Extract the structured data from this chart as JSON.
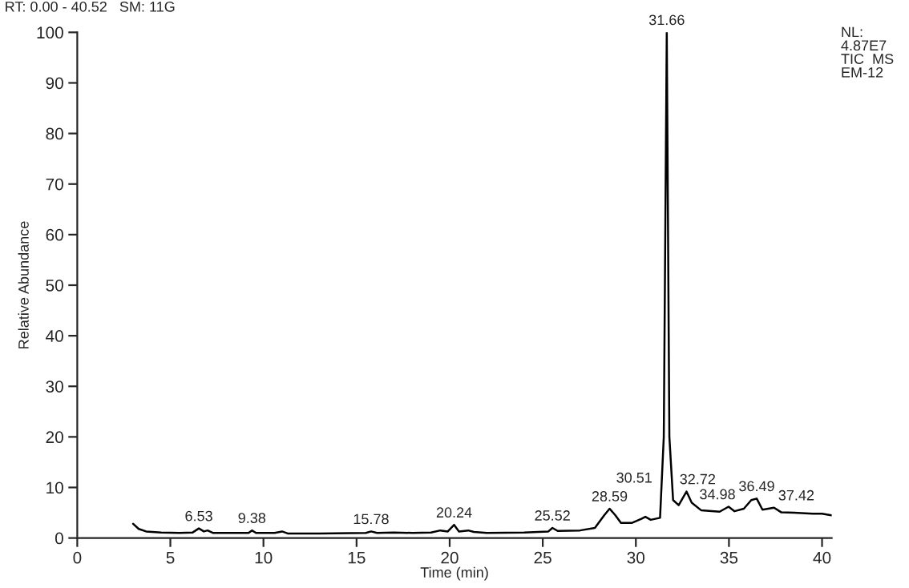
{
  "chart_data": {
    "type": "line",
    "xlabel": "Time (min)",
    "ylabel": "Relative Abundance",
    "xlim": [
      0,
      40.52
    ],
    "ylim": [
      0,
      100
    ],
    "xticks": [
      0,
      5,
      10,
      15,
      20,
      25,
      30,
      35,
      40
    ],
    "yticks": [
      0,
      10,
      20,
      30,
      40,
      50,
      60,
      70,
      80,
      90,
      100
    ],
    "grid": false,
    "legend": false,
    "marker": "none",
    "line_style": "solid",
    "series": [
      {
        "color": "#000000",
        "x": [
          3.0,
          3.3,
          3.7,
          4.5,
          5.5,
          6.2,
          6.53,
          6.8,
          7.0,
          7.3,
          8.5,
          9.2,
          9.38,
          9.6,
          10.6,
          11.0,
          11.3,
          13.0,
          15.5,
          15.78,
          16.1,
          17.0,
          18.0,
          19.0,
          19.5,
          19.9,
          20.24,
          20.5,
          21.0,
          21.3,
          22.0,
          24.0,
          25.3,
          25.52,
          25.8,
          27.0,
          27.8,
          28.3,
          28.59,
          28.9,
          29.2,
          29.8,
          30.3,
          30.51,
          30.8,
          31.3,
          31.5,
          31.66,
          31.8,
          32.0,
          32.3,
          32.72,
          33.0,
          33.5,
          34.5,
          34.98,
          35.3,
          35.8,
          36.2,
          36.49,
          36.8,
          37.42,
          37.8,
          38.5,
          39.5,
          40.0,
          40.5
        ],
        "values": [
          2.8,
          1.8,
          1.3,
          1.1,
          1.0,
          1.1,
          1.9,
          1.3,
          1.5,
          1.0,
          1.0,
          1.0,
          1.5,
          1.0,
          1.0,
          1.3,
          0.9,
          0.9,
          1.0,
          1.3,
          1.0,
          1.1,
          1.0,
          1.1,
          1.5,
          1.3,
          2.6,
          1.3,
          1.5,
          1.2,
          1.0,
          1.1,
          1.3,
          2.0,
          1.4,
          1.5,
          2.0,
          4.5,
          5.8,
          4.5,
          3.0,
          3.0,
          3.8,
          4.2,
          3.6,
          4.0,
          20,
          100,
          20,
          7.5,
          6.5,
          9.2,
          7.0,
          5.5,
          5.2,
          6.2,
          5.3,
          5.8,
          7.5,
          7.8,
          5.6,
          6.0,
          5.1,
          5.0,
          4.8,
          4.8,
          4.5
        ]
      }
    ],
    "annotations": [
      "RT: 0.00 - 40.52   SM: 11G",
      "NL:\n4.87E7\nTIC  MS\nEM-12",
      {
        "text": "6.53",
        "x": 6.53,
        "y": 1.9
      },
      {
        "text": "9.38",
        "x": 9.38,
        "y": 1.5
      },
      {
        "text": "15.78",
        "x": 15.78,
        "y": 1.3
      },
      {
        "text": "20.24",
        "x": 20.24,
        "y": 2.6
      },
      {
        "text": "25.52",
        "x": 25.52,
        "y": 2.0
      },
      {
        "text": "28.59",
        "x": 28.59,
        "y": 5.8
      },
      {
        "text": "30.51",
        "x": 30.51,
        "y": 4.2
      },
      {
        "text": "31.66",
        "x": 31.66,
        "y": 100
      },
      {
        "text": "32.72",
        "x": 32.72,
        "y": 9.2
      },
      {
        "text": "34.98",
        "x": 34.98,
        "y": 6.2
      },
      {
        "text": "36.49",
        "x": 36.49,
        "y": 7.8
      },
      {
        "text": "37.42",
        "x": 37.42,
        "y": 6.0
      }
    ]
  }
}
